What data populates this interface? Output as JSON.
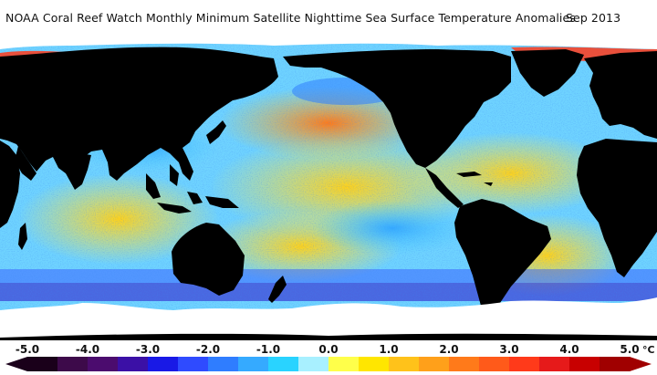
{
  "title": {
    "text": "NOAA Coral Reef Watch Monthly Minimum Satellite Nighttime Sea Surface Temperature Anomalies",
    "date": "Sep 2013"
  },
  "map": {
    "projection": "equirectangular",
    "colors": {
      "land": "#000000",
      "ice": "#ffffff"
    }
  },
  "legend": {
    "unit": "°C",
    "ticks": [
      "-5.0",
      "-4.0",
      "-3.0",
      "-2.0",
      "-1.0",
      "0.0",
      "1.0",
      "2.0",
      "3.0",
      "4.0",
      "5.0"
    ],
    "colors": [
      "#1a001a",
      "#3d0a4a",
      "#4b0c6e",
      "#3b10a6",
      "#1919e6",
      "#2f4bff",
      "#2f7dff",
      "#35aaff",
      "#29d3ff",
      "#a8f0ff",
      "#ffff4a",
      "#ffe600",
      "#ffc21a",
      "#ffa01a",
      "#ff7a1a",
      "#ff5a1a",
      "#ff3a1a",
      "#e61a1a",
      "#c80000",
      "#a00000"
    ]
  }
}
